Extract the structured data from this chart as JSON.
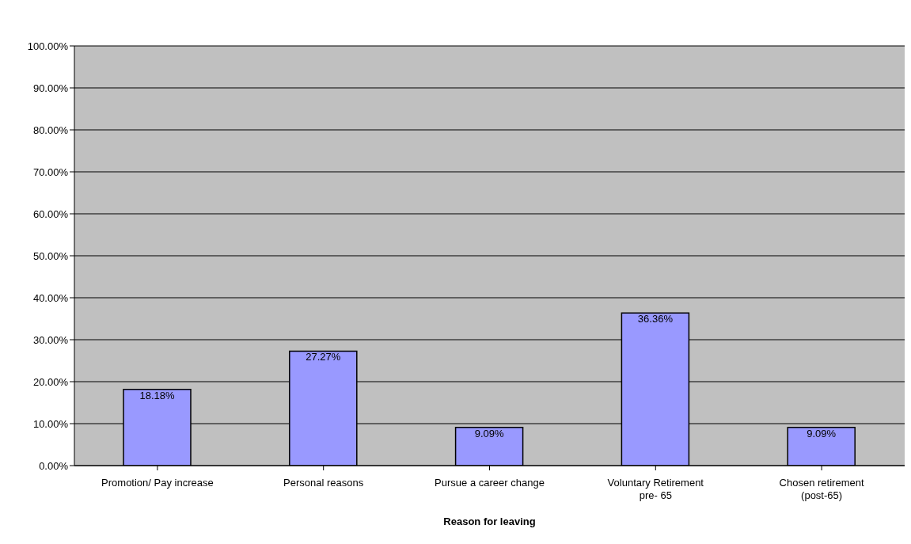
{
  "chart_data": {
    "type": "bar",
    "xlabel": "Reason for leaving",
    "categories": [
      "Promotion/ Pay increase",
      "Personal reasons",
      "Pursue a career change",
      "Voluntary Retirement pre- 65",
      "Chosen retirement (post-65)"
    ],
    "values": [
      18.18,
      27.27,
      9.09,
      36.36,
      9.09
    ],
    "value_labels": [
      "18.18%",
      "27.27%",
      "9.09%",
      "36.36%",
      "9.09%"
    ],
    "color": "#9999ff",
    "ylim": [
      0,
      100
    ],
    "yticks": [
      {
        "value": 0,
        "label": "0.00%"
      },
      {
        "value": 10,
        "label": "10.00%"
      },
      {
        "value": 20,
        "label": "20.00%"
      },
      {
        "value": 30,
        "label": "30.00%"
      },
      {
        "value": 40,
        "label": "40.00%"
      },
      {
        "value": 50,
        "label": "50.00%"
      },
      {
        "value": 60,
        "label": "60.00%"
      },
      {
        "value": 70,
        "label": "70.00%"
      },
      {
        "value": 80,
        "label": "80.00%"
      },
      {
        "value": 90,
        "label": "90.00%"
      },
      {
        "value": 100,
        "label": "100.00%"
      }
    ],
    "grid": "y",
    "legend": false
  }
}
